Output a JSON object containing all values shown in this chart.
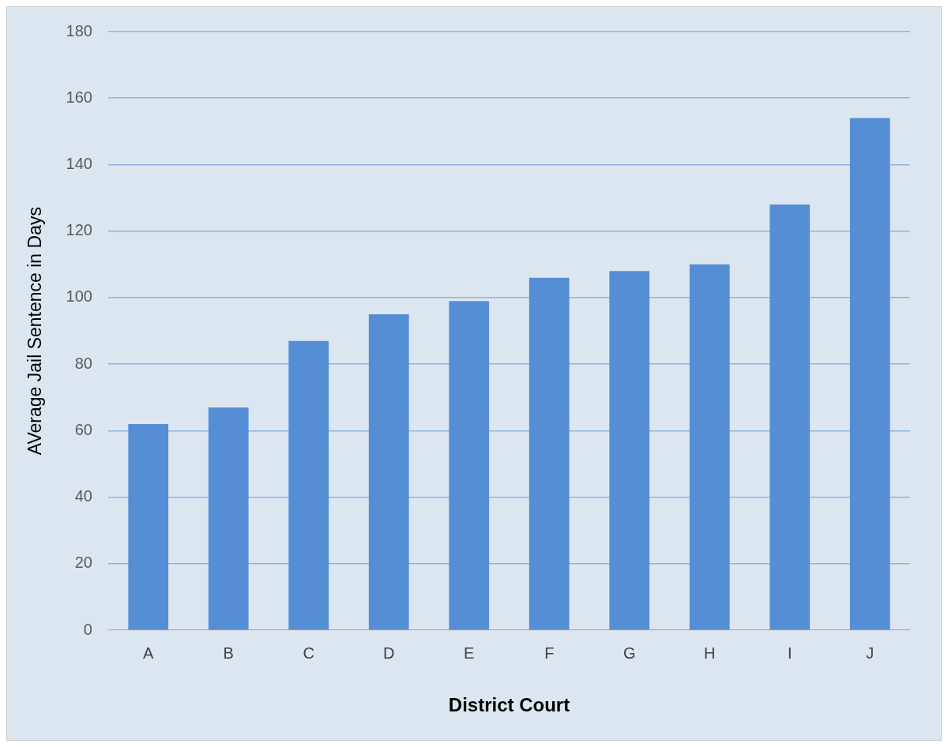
{
  "chart_data": {
    "type": "bar",
    "xlabel": "District Court",
    "ylabel": "AVerage Jail Sentence in Days",
    "categories": [
      "A",
      "B",
      "C",
      "D",
      "E",
      "F",
      "G",
      "H",
      "I",
      "J"
    ],
    "values": [
      62,
      67,
      87,
      95,
      99,
      106,
      108,
      110,
      128,
      154
    ],
    "color": "#558ed5",
    "ylim": [
      0,
      180
    ],
    "yticks": [
      0,
      20,
      40,
      60,
      80,
      100,
      120,
      140,
      160,
      180
    ],
    "grid": "y",
    "legend": false
  }
}
